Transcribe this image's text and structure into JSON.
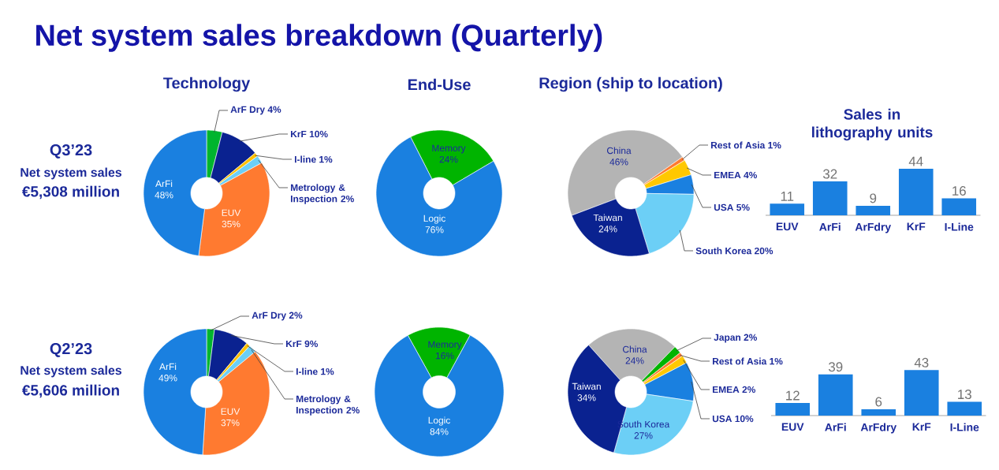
{
  "chart_data": [
    {
      "type": "other",
      "title": "Net system sales breakdown (Quarterly)",
      "annotations": [
        "Q3’23",
        "Net system sales",
        "€5,308 million"
      ]
    },
    {
      "type": "donut",
      "title": "Technology",
      "categories": [
        "ArF Dry",
        "KrF",
        "I-line",
        "Metrology & Inspection",
        "EUV",
        "ArFi"
      ],
      "values": [
        4,
        10,
        1,
        2,
        35,
        48
      ],
      "value_labels": [
        "4%",
        "10%",
        "1%",
        "2%",
        "35%",
        "48%"
      ],
      "colors": [
        "#00b52e",
        "#0a2290",
        "#ffc000",
        "#6ccff6",
        "#ff7a30",
        "#1a80e0"
      ]
    },
    {
      "type": "donut",
      "title": "End-Use",
      "categories": [
        "Memory",
        "Logic"
      ],
      "values": [
        24,
        76
      ],
      "value_labels": [
        "24%",
        "76%"
      ],
      "colors": [
        "#00b400",
        "#1a80e0"
      ]
    },
    {
      "type": "donut",
      "title": "Region (ship to location)",
      "categories": [
        "China",
        "Rest of Asia",
        "EMEA",
        "USA",
        "South Korea",
        "Taiwan"
      ],
      "values": [
        46,
        1,
        4,
        5,
        20,
        24
      ],
      "value_labels": [
        "46%",
        "1%",
        "4%",
        "5%",
        "20%",
        "24%"
      ],
      "colors": [
        "#b4b4b4",
        "#ff7a30",
        "#ffc800",
        "#1a80e0",
        "#6ccff6",
        "#0a2290"
      ]
    },
    {
      "type": "bar",
      "title": "Sales in lithography units",
      "categories": [
        "EUV",
        "ArFi",
        "ArFdry",
        "KrF",
        "I-Line"
      ],
      "values": [
        11,
        32,
        9,
        44,
        16
      ],
      "color": "#1a80e0",
      "data_labels": true
    },
    {
      "type": "other",
      "annotations": [
        "Q2’23",
        "Net system sales",
        "€5,606 million"
      ]
    },
    {
      "type": "donut",
      "categories": [
        "ArF Dry",
        "KrF",
        "I-line",
        "Metrology & Inspection",
        "EUV",
        "ArFi"
      ],
      "values": [
        2,
        9,
        1,
        2,
        37,
        49
      ],
      "value_labels": [
        "2%",
        "9%",
        "1%",
        "2%",
        "37%",
        "49%"
      ],
      "colors": [
        "#00b52e",
        "#0a2290",
        "#ffc000",
        "#6ccff6",
        "#ff7a30",
        "#1a80e0"
      ]
    },
    {
      "type": "donut",
      "categories": [
        "Memory",
        "Logic"
      ],
      "values": [
        16,
        84
      ],
      "value_labels": [
        "16%",
        "84%"
      ],
      "colors": [
        "#00b400",
        "#1a80e0"
      ]
    },
    {
      "type": "donut",
      "categories": [
        "China",
        "Japan",
        "Rest of Asia",
        "EMEA",
        "USA",
        "South Korea",
        "Taiwan"
      ],
      "values": [
        24,
        2,
        1,
        2,
        10,
        27,
        34
      ],
      "value_labels": [
        "24%",
        "2%",
        "1%",
        "2%",
        "10%",
        "27%",
        "34%"
      ],
      "colors": [
        "#b4b4b4",
        "#00b400",
        "#ff7a30",
        "#ffc800",
        "#1a80e0",
        "#6ccff6",
        "#0a2290"
      ]
    },
    {
      "type": "bar",
      "categories": [
        "EUV",
        "ArFi",
        "ArFdry",
        "KrF",
        "I-Line"
      ],
      "values": [
        12,
        39,
        6,
        43,
        13
      ],
      "color": "#1a80e0",
      "data_labels": true
    }
  ]
}
